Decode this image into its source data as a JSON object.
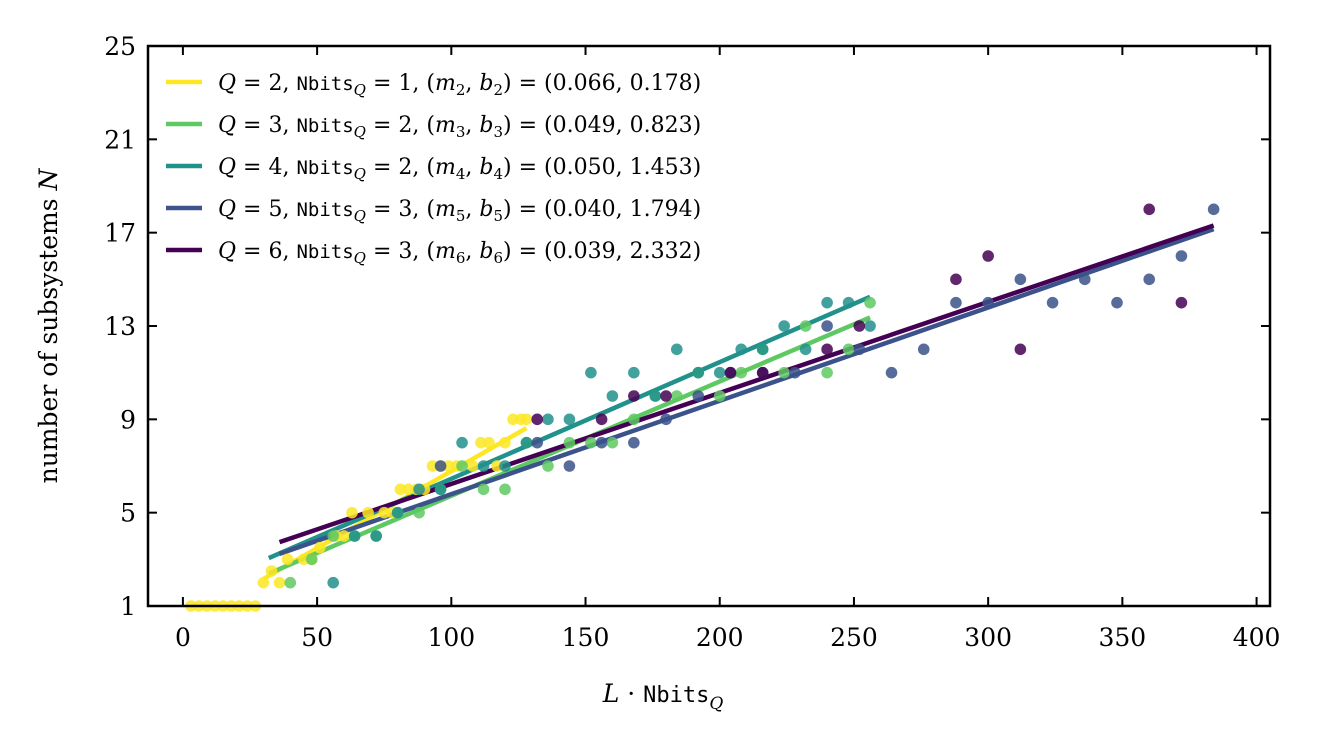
{
  "chart_data": {
    "type": "scatter",
    "title": "",
    "xlabel": {
      "L": "L",
      "dot": " · ",
      "nbits": "Nbits",
      "sub": "Q"
    },
    "ylabel": {
      "text": "number of subsystems ",
      "N": "N"
    },
    "xlim": [
      -13,
      405
    ],
    "ylim": [
      1,
      25
    ],
    "xticks": [
      0,
      50,
      100,
      150,
      200,
      250,
      300,
      350,
      400
    ],
    "yticks": [
      1,
      5,
      9,
      13,
      17,
      21,
      25
    ],
    "legend_position": "top-left",
    "series": [
      {
        "name": "Q = 2, Nbits_Q = 1, (m_2, b_2) = (0.066, 0.178)",
        "Q": "2",
        "nbits": "1",
        "idx": "2",
        "m": "0.066",
        "b": "0.178",
        "color": "#fde725",
        "fit": {
          "slope": 0.066,
          "intercept": 0.178,
          "x_range": [
            30,
            128
          ]
        },
        "points": [
          [
            3,
            1
          ],
          [
            6,
            1
          ],
          [
            9,
            1
          ],
          [
            12,
            1
          ],
          [
            15,
            1
          ],
          [
            18,
            1
          ],
          [
            21,
            1
          ],
          [
            24,
            1
          ],
          [
            27,
            1
          ],
          [
            30,
            2
          ],
          [
            33,
            2.5
          ],
          [
            36,
            2
          ],
          [
            39,
            3
          ],
          [
            45,
            3
          ],
          [
            48,
            3
          ],
          [
            51,
            3.5
          ],
          [
            57,
            4
          ],
          [
            60,
            4
          ],
          [
            63,
            5
          ],
          [
            69,
            5
          ],
          [
            75,
            5
          ],
          [
            78,
            5
          ],
          [
            81,
            6
          ],
          [
            84,
            6
          ],
          [
            87,
            6
          ],
          [
            90,
            6
          ],
          [
            93,
            7
          ],
          [
            96,
            7
          ],
          [
            99,
            7
          ],
          [
            102,
            7
          ],
          [
            108,
            7
          ],
          [
            111,
            8
          ],
          [
            114,
            8
          ],
          [
            117,
            7
          ],
          [
            120,
            8
          ],
          [
            123,
            9
          ],
          [
            126,
            9
          ],
          [
            128,
            9
          ]
        ]
      },
      {
        "name": "Q = 3, Nbits_Q = 2, (m_3, b_3) = (0.049, 0.823)",
        "Q": "3",
        "nbits": "2",
        "idx": "3",
        "m": "0.049",
        "b": "0.823",
        "color": "#5ec962",
        "fit": {
          "slope": 0.049,
          "intercept": 0.823,
          "x_range": [
            32,
            256
          ]
        },
        "points": [
          [
            40,
            2
          ],
          [
            48,
            3
          ],
          [
            56,
            4
          ],
          [
            64,
            4
          ],
          [
            72,
            4
          ],
          [
            80,
            5
          ],
          [
            88,
            5
          ],
          [
            96,
            6
          ],
          [
            104,
            7
          ],
          [
            112,
            6
          ],
          [
            120,
            6
          ],
          [
            128,
            8
          ],
          [
            136,
            7
          ],
          [
            144,
            8
          ],
          [
            152,
            8
          ],
          [
            160,
            8
          ],
          [
            168,
            9
          ],
          [
            176,
            10
          ],
          [
            184,
            10
          ],
          [
            192,
            11
          ],
          [
            200,
            10
          ],
          [
            208,
            11
          ],
          [
            216,
            12
          ],
          [
            224,
            11
          ],
          [
            232,
            13
          ],
          [
            240,
            11
          ],
          [
            248,
            12
          ],
          [
            256,
            14
          ]
        ]
      },
      {
        "name": "Q = 4, Nbits_Q = 2, (m_4, b_4) = (0.050, 1.453)",
        "Q": "4",
        "nbits": "2",
        "idx": "4",
        "m": "0.050",
        "b": "1.453",
        "color": "#21918c",
        "fit": {
          "slope": 0.05,
          "intercept": 1.453,
          "x_range": [
            32,
            256
          ]
        },
        "points": [
          [
            56,
            2
          ],
          [
            64,
            4
          ],
          [
            72,
            4
          ],
          [
            80,
            5
          ],
          [
            88,
            6
          ],
          [
            96,
            6
          ],
          [
            104,
            8
          ],
          [
            112,
            7
          ],
          [
            120,
            7
          ],
          [
            128,
            8
          ],
          [
            136,
            9
          ],
          [
            144,
            9
          ],
          [
            152,
            11
          ],
          [
            160,
            10
          ],
          [
            168,
            11
          ],
          [
            176,
            10
          ],
          [
            184,
            12
          ],
          [
            192,
            11
          ],
          [
            200,
            11
          ],
          [
            208,
            12
          ],
          [
            216,
            12
          ],
          [
            224,
            13
          ],
          [
            232,
            12
          ],
          [
            240,
            14
          ],
          [
            248,
            14
          ],
          [
            256,
            13
          ]
        ]
      },
      {
        "name": "Q = 5, Nbits_Q = 3, (m_5, b_5) = (0.040, 1.794)",
        "Q": "5",
        "nbits": "3",
        "idx": "5",
        "m": "0.040",
        "b": "1.794",
        "color": "#3b528b",
        "fit": {
          "slope": 0.04,
          "intercept": 1.794,
          "x_range": [
            36,
            384
          ]
        },
        "points": [
          [
            96,
            7
          ],
          [
            132,
            8
          ],
          [
            144,
            7
          ],
          [
            156,
            8
          ],
          [
            168,
            8
          ],
          [
            180,
            9
          ],
          [
            192,
            10
          ],
          [
            204,
            11
          ],
          [
            216,
            11
          ],
          [
            228,
            11
          ],
          [
            240,
            13
          ],
          [
            252,
            12
          ],
          [
            264,
            11
          ],
          [
            276,
            12
          ],
          [
            288,
            14
          ],
          [
            300,
            14
          ],
          [
            312,
            15
          ],
          [
            324,
            14
          ],
          [
            336,
            15
          ],
          [
            348,
            14
          ],
          [
            360,
            15
          ],
          [
            372,
            16
          ],
          [
            384,
            18
          ]
        ]
      },
      {
        "name": "Q = 6, Nbits_Q = 3, (m_6, b_6) = (0.039, 2.332)",
        "Q": "6",
        "nbits": "3",
        "idx": "6",
        "m": "0.039",
        "b": "2.332",
        "color": "#440154",
        "fit": {
          "slope": 0.039,
          "intercept": 2.332,
          "x_range": [
            36,
            384
          ]
        },
        "points": [
          [
            132,
            9
          ],
          [
            156,
            9
          ],
          [
            168,
            10
          ],
          [
            180,
            10
          ],
          [
            204,
            11
          ],
          [
            216,
            11
          ],
          [
            240,
            12
          ],
          [
            252,
            13
          ],
          [
            288,
            15
          ],
          [
            300,
            16
          ],
          [
            312,
            12
          ],
          [
            360,
            18
          ],
          [
            372,
            14
          ]
        ]
      }
    ]
  }
}
